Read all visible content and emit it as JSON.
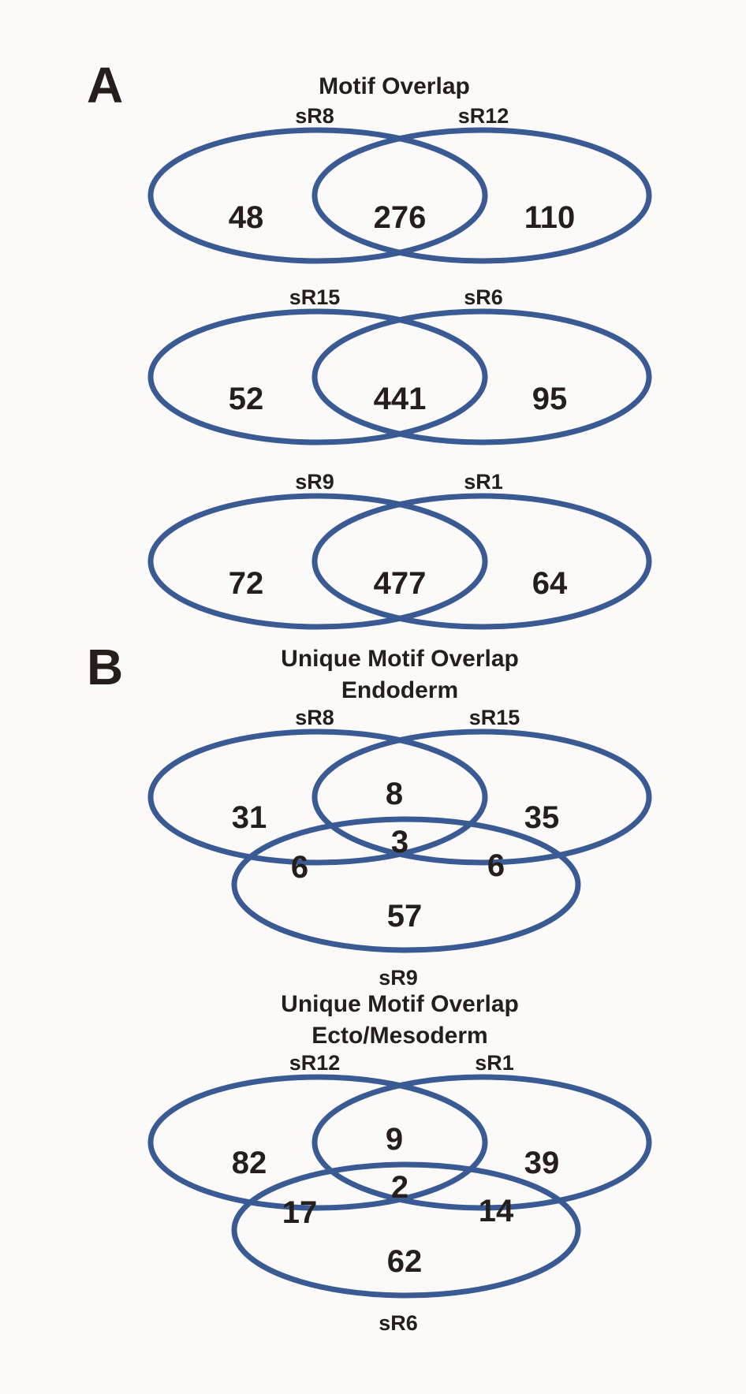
{
  "colors": {
    "background": "#fbfaf8",
    "ellipse_stroke": "#3a5a94",
    "text": "#251e1b"
  },
  "panel_a": {
    "label": "A",
    "title": "Motif Overlap",
    "venns": [
      {
        "labels": {
          "left": "sR8",
          "right": "sR12"
        },
        "values": {
          "left": "48",
          "overlap": "276",
          "right": "110"
        }
      },
      {
        "labels": {
          "left": "sR15",
          "right": "sR6"
        },
        "values": {
          "left": "52",
          "overlap": "441",
          "right": "95"
        }
      },
      {
        "labels": {
          "left": "sR9",
          "right": "sR1"
        },
        "values": {
          "left": "72",
          "overlap": "477",
          "right": "64"
        }
      }
    ]
  },
  "panel_b": {
    "label": "B",
    "venns": [
      {
        "title": [
          "Unique Motif Overlap",
          "Endoderm"
        ],
        "labels": {
          "top_left": "sR8",
          "top_right": "sR15",
          "bottom": "sR9"
        },
        "values": {
          "top_left": "31",
          "top_overlap": "8",
          "top_right": "35",
          "center": "3",
          "bottom_left": "6",
          "bottom_right": "6",
          "bottom": "57"
        }
      },
      {
        "title": [
          "Unique Motif Overlap",
          "Ecto/Mesoderm"
        ],
        "labels": {
          "top_left": "sR12",
          "top_right": "sR1",
          "bottom": "sR6"
        },
        "values": {
          "top_left": "82",
          "top_overlap": "9",
          "top_right": "39",
          "center": "2",
          "bottom_left": "17",
          "bottom_right": "14",
          "bottom": "62"
        }
      }
    ]
  },
  "chart_data": [
    {
      "type": "venn",
      "subtype": "2-set",
      "title": "Motif Overlap",
      "sets": [
        "sR8",
        "sR12"
      ],
      "regions": {
        "sR8_only": 48,
        "sR8_and_sR12": 276,
        "sR12_only": 110
      }
    },
    {
      "type": "venn",
      "subtype": "2-set",
      "title": "Motif Overlap",
      "sets": [
        "sR15",
        "sR6"
      ],
      "regions": {
        "sR15_only": 52,
        "sR15_and_sR6": 441,
        "sR6_only": 95
      }
    },
    {
      "type": "venn",
      "subtype": "2-set",
      "title": "Motif Overlap",
      "sets": [
        "sR9",
        "sR1"
      ],
      "regions": {
        "sR9_only": 72,
        "sR9_and_sR1": 477,
        "sR1_only": 64
      }
    },
    {
      "type": "venn",
      "subtype": "3-set",
      "title": "Unique Motif Overlap Endoderm",
      "sets": [
        "sR8",
        "sR15",
        "sR9"
      ],
      "regions": {
        "sR8_only": 31,
        "sR8_and_sR15": 8,
        "sR15_only": 35,
        "sR8_and_sR15_and_sR9": 3,
        "sR8_and_sR9": 6,
        "sR15_and_sR9": 6,
        "sR9_only": 57
      }
    },
    {
      "type": "venn",
      "subtype": "3-set",
      "title": "Unique Motif Overlap Ecto/Mesoderm",
      "sets": [
        "sR12",
        "sR1",
        "sR6"
      ],
      "regions": {
        "sR12_only": 82,
        "sR12_and_sR1": 9,
        "sR1_only": 39,
        "sR12_and_sR1_and_sR6": 2,
        "sR12_and_sR6": 17,
        "sR1_and_sR6": 14,
        "sR6_only": 62
      }
    }
  ]
}
